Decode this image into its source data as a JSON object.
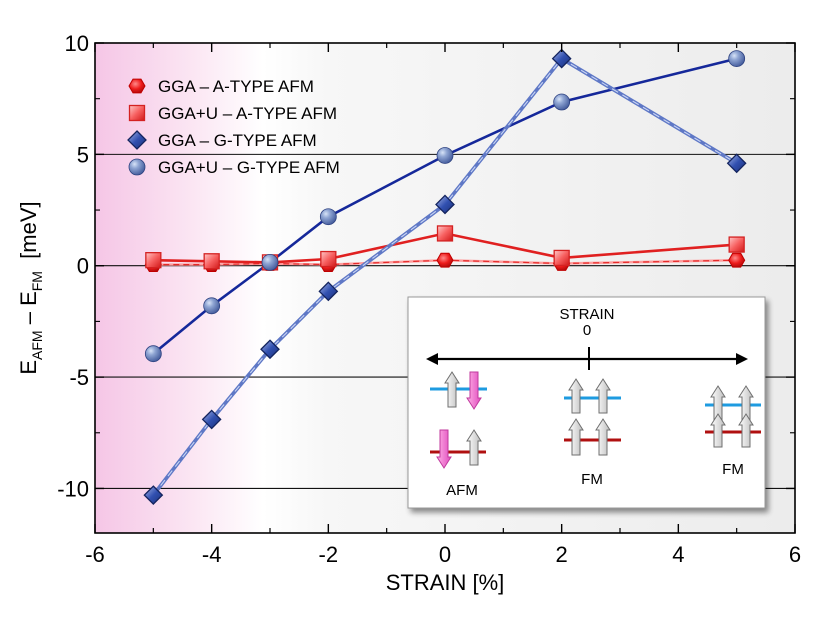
{
  "chart_data": {
    "type": "line",
    "xlabel": "STRAIN [%]",
    "ylabel": {
      "main": "E",
      "sub1": "AFM",
      "mid": " – E",
      "sub2": "FM",
      "unit": "  [meV]"
    },
    "xlim": [
      -6,
      6
    ],
    "ylim": [
      -12,
      10
    ],
    "xticks": [
      -6,
      -4,
      -2,
      0,
      2,
      4,
      6
    ],
    "yticks": [
      -10,
      -5,
      0,
      5,
      10
    ],
    "grid": "horizontal",
    "legend_position": "top-left",
    "series": [
      {
        "name": "GGA – A-TYPE AFM",
        "marker": "hexagon",
        "color": "#e0101a",
        "line": "dashed-light",
        "x": [
          -5,
          -4,
          -3,
          -2,
          0,
          2,
          5
        ],
        "y": [
          0.05,
          0.05,
          0.1,
          0.05,
          0.25,
          0.1,
          0.25
        ]
      },
      {
        "name": "GGA+U – A-TYPE AFM",
        "marker": "square",
        "color": "#e02020",
        "line": "solid",
        "x": [
          -5,
          -4,
          -3,
          -2,
          0,
          2,
          5
        ],
        "y": [
          0.25,
          0.2,
          0.15,
          0.3,
          1.45,
          0.35,
          0.95
        ]
      },
      {
        "name": "GGA – G-TYPE AFM",
        "marker": "diamond",
        "color": "#23409e",
        "line": "dashed",
        "x": [
          -5,
          -4,
          -3,
          -2,
          0,
          2,
          5
        ],
        "y": [
          -10.3,
          -6.9,
          -3.75,
          -1.15,
          2.75,
          9.3,
          4.6
        ]
      },
      {
        "name": "GGA+U – G-TYPE AFM",
        "marker": "circle",
        "color": "#15289a",
        "line": "solid",
        "x": [
          -5,
          -4,
          -3,
          -2,
          0,
          2,
          5
        ],
        "y": [
          -3.95,
          -1.8,
          0.15,
          2.2,
          4.95,
          7.35,
          9.3
        ]
      }
    ],
    "inset": {
      "title": "STRAIN",
      "zero": "0",
      "labels": [
        "AFM",
        "FM",
        "FM"
      ]
    }
  },
  "colors": {
    "afm_band": "#f7c9e8",
    "plot_bg": "#efefef",
    "blue_level": "#1e9be0",
    "red_level": "#b01010",
    "pink_arrow": "#f065c8"
  }
}
